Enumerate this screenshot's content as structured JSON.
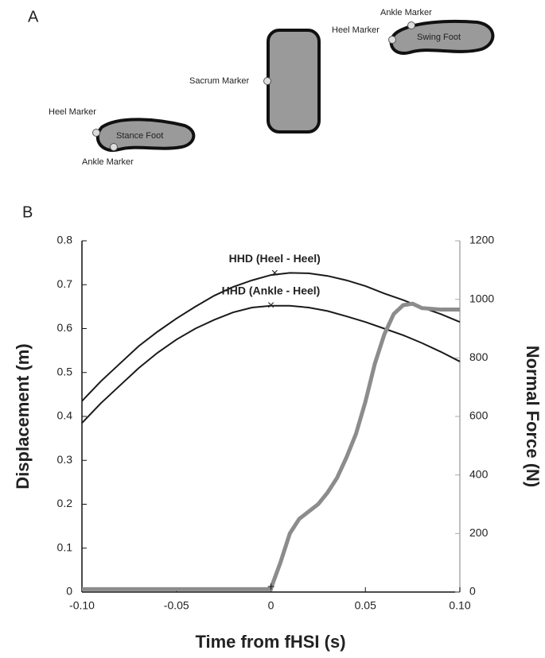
{
  "panel_labels": [
    "A",
    "B"
  ],
  "diagram": {
    "labels": [
      "Heel Marker",
      "Stance Foot",
      "Ankle Marker",
      "Sacrum Marker",
      "Ankle Marker",
      "Heel Marker",
      "Swing Foot"
    ]
  },
  "chart_data": {
    "type": "line",
    "xlabel": "Time from fHSI (s)",
    "ylabel": "Displacement (m)",
    "y2label": "Normal Force (N)",
    "xlim": [
      -0.1,
      0.1
    ],
    "xticks": [
      {
        "value": -0.1,
        "label": "-0.10"
      },
      {
        "value": -0.05,
        "label": "-0.05"
      },
      0,
      {
        "value": 0.05,
        "label": "0.05"
      },
      {
        "value": 0.1,
        "label": "0.10"
      }
    ],
    "ylim": [
      0,
      0.8
    ],
    "yticks": [
      0,
      0.1,
      0.2,
      0.3,
      0.4,
      0.5,
      0.6,
      0.7,
      0.8
    ],
    "y2lim": [
      0,
      1200
    ],
    "y2ticks": [
      0,
      200,
      400,
      600,
      800,
      1000,
      1200
    ],
    "series": [
      {
        "name": "HHD (Heel - Heel)",
        "color": "#1a1a1a",
        "x": [
          -0.1,
          -0.09,
          -0.08,
          -0.07,
          -0.06,
          -0.05,
          -0.04,
          -0.03,
          -0.02,
          -0.01,
          0,
          0.01,
          0.02,
          0.03,
          0.04,
          0.05,
          0.06,
          0.07,
          0.08,
          0.09,
          0.1
        ],
        "values": [
          0.435,
          0.48,
          0.52,
          0.56,
          0.593,
          0.623,
          0.65,
          0.675,
          0.695,
          0.71,
          0.722,
          0.727,
          0.726,
          0.72,
          0.71,
          0.697,
          0.68,
          0.665,
          0.648,
          0.633,
          0.615
        ],
        "peak": {
          "x": 0.002,
          "y": 0.725
        }
      },
      {
        "name": "HHD (Ankle - Heel)",
        "color": "#1a1a1a",
        "x": [
          -0.1,
          -0.09,
          -0.08,
          -0.07,
          -0.06,
          -0.05,
          -0.04,
          -0.03,
          -0.02,
          -0.01,
          0,
          0.01,
          0.02,
          0.03,
          0.04,
          0.05,
          0.06,
          0.07,
          0.08,
          0.09,
          0.1
        ],
        "values": [
          0.385,
          0.43,
          0.47,
          0.51,
          0.545,
          0.575,
          0.6,
          0.62,
          0.637,
          0.648,
          0.652,
          0.652,
          0.648,
          0.64,
          0.628,
          0.615,
          0.6,
          0.585,
          0.567,
          0.547,
          0.525
        ],
        "peak": {
          "x": 0,
          "y": 0.652
        }
      },
      {
        "color": "#8c8c8c",
        "axis": "y2",
        "x": [
          -0.1,
          -0.05,
          0,
          0.001,
          0.005,
          0.01,
          0.015,
          0.02,
          0.025,
          0.03,
          0.035,
          0.04,
          0.045,
          0.05,
          0.055,
          0.06,
          0.065,
          0.07,
          0.075,
          0.08,
          0.09,
          0.1
        ],
        "values": [
          10,
          10,
          10,
          30,
          100,
          200,
          250,
          275,
          300,
          340,
          390,
          460,
          540,
          650,
          780,
          880,
          950,
          980,
          985,
          970,
          965,
          965
        ],
        "onset": {
          "x": 0,
          "y": 15
        }
      }
    ]
  }
}
